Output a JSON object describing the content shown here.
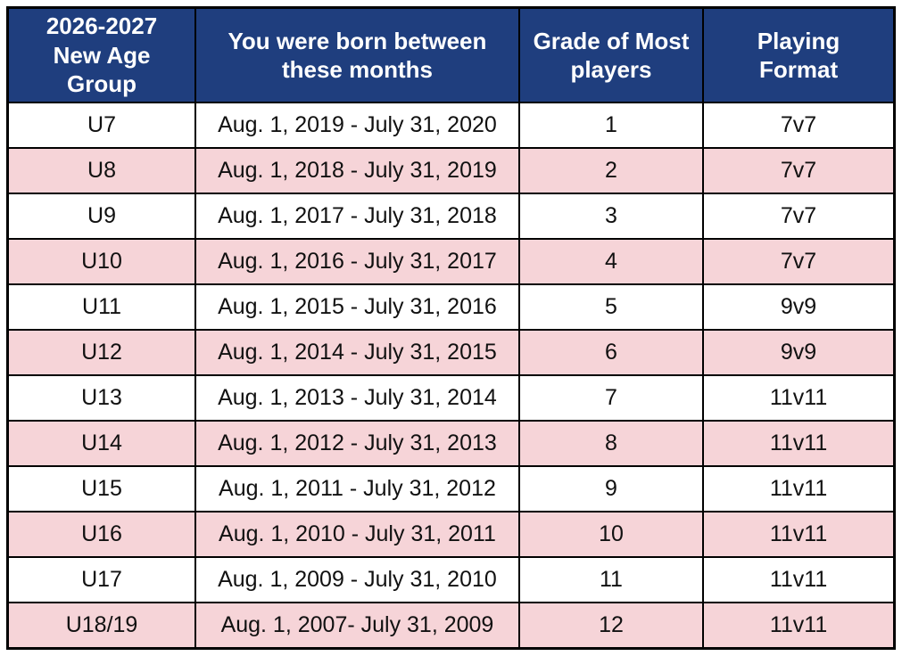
{
  "chart_data": {
    "type": "table",
    "columns": [
      "2026-2027 New Age Group",
      "You were born between these months",
      "Grade of Most players",
      "Playing Format"
    ],
    "rows": [
      [
        "U7",
        "Aug. 1, 2019 - July 31, 2020",
        "1",
        "7v7"
      ],
      [
        "U8",
        "Aug. 1, 2018 - July 31, 2019",
        "2",
        "7v7"
      ],
      [
        "U9",
        "Aug. 1, 2017 - July 31, 2018",
        "3",
        "7v7"
      ],
      [
        "U10",
        "Aug. 1, 2016 - July 31, 2017",
        "4",
        "7v7"
      ],
      [
        "U11",
        "Aug. 1, 2015 - July 31, 2016",
        "5",
        "9v9"
      ],
      [
        "U12",
        "Aug. 1, 2014 - July 31, 2015",
        "6",
        "9v9"
      ],
      [
        "U13",
        "Aug. 1, 2013 - July 31, 2014",
        "7",
        "11v11"
      ],
      [
        "U14",
        "Aug. 1, 2012 - July 31, 2013",
        "8",
        "11v11"
      ],
      [
        "U15",
        "Aug. 1, 2011 - July 31, 2012",
        "9",
        "11v11"
      ],
      [
        "U16",
        "Aug. 1, 2010 - July 31, 2011",
        "10",
        "11v11"
      ],
      [
        "U17",
        "Aug. 1, 2009 - July 31, 2010",
        "11",
        "11v11"
      ],
      [
        "U18/19",
        "Aug. 1, 2007- July 31, 2009",
        "12",
        "11v11"
      ]
    ]
  },
  "colors": {
    "header_bg": "#1f3e7e",
    "header_text": "#ffffff",
    "row_bg_white": "#ffffff",
    "row_bg_pink": "#f6d4d8",
    "border": "#000000",
    "body_text": "#111111"
  }
}
